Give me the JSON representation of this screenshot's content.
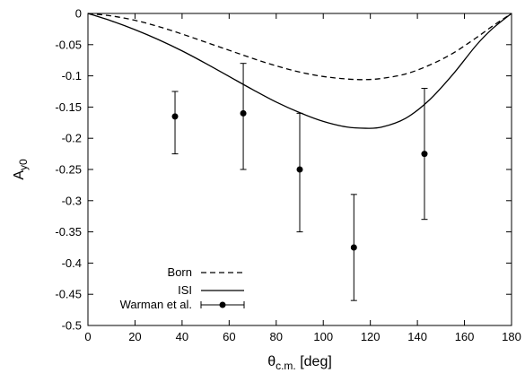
{
  "chart_data": {
    "type": "line",
    "xlabel": "θ",
    "xlabel_sub": "c.m.",
    "xlabel_unit": " [deg]",
    "ylabel": "A",
    "ylabel_sub": "y0",
    "xlim": [
      0,
      180
    ],
    "ylim": [
      -0.5,
      0
    ],
    "xticks": [
      0,
      20,
      40,
      60,
      80,
      100,
      120,
      140,
      160,
      180
    ],
    "xtick_labels": [
      "0",
      "20",
      "40",
      "60",
      "80",
      "100",
      "120",
      "140",
      "160",
      "180"
    ],
    "yticks": [
      0,
      -0.05,
      -0.1,
      -0.15,
      -0.2,
      -0.25,
      -0.3,
      -0.35,
      -0.4,
      -0.45,
      -0.5
    ],
    "ytick_labels": [
      "0",
      "-0.05",
      "-0.1",
      "-0.15",
      "-0.2",
      "-0.25",
      "-0.3",
      "-0.35",
      "-0.4",
      "-0.45",
      "-0.5"
    ],
    "grid": false,
    "legend_position": "bottom-left",
    "series": [
      {
        "name": "Born",
        "style": "dashed",
        "x": [
          0,
          10,
          20,
          30,
          40,
          50,
          60,
          70,
          80,
          90,
          100,
          110,
          118,
          125,
          135,
          145,
          155,
          165,
          172,
          180
        ],
        "y": [
          0,
          -0.004,
          -0.011,
          -0.021,
          -0.033,
          -0.046,
          -0.059,
          -0.072,
          -0.084,
          -0.094,
          -0.101,
          -0.105,
          -0.106,
          -0.104,
          -0.097,
          -0.083,
          -0.064,
          -0.039,
          -0.02,
          0
        ]
      },
      {
        "name": "ISI",
        "style": "solid",
        "x": [
          0,
          10,
          20,
          30,
          40,
          50,
          60,
          70,
          80,
          90,
          100,
          110,
          118,
          125,
          135,
          145,
          155,
          165,
          172,
          180
        ],
        "y": [
          0,
          -0.012,
          -0.026,
          -0.042,
          -0.06,
          -0.08,
          -0.101,
          -0.122,
          -0.142,
          -0.159,
          -0.173,
          -0.182,
          -0.184,
          -0.182,
          -0.168,
          -0.139,
          -0.098,
          -0.051,
          -0.024,
          0
        ]
      },
      {
        "name": "Warman et al.",
        "style": "points-errorbars",
        "x": [
          37,
          66,
          90,
          113,
          143
        ],
        "y": [
          -0.165,
          -0.16,
          -0.25,
          -0.375,
          -0.225
        ],
        "err_low": [
          -0.225,
          -0.25,
          -0.35,
          -0.46,
          -0.33
        ],
        "err_high": [
          -0.125,
          -0.08,
          -0.16,
          -0.29,
          -0.12
        ]
      }
    ]
  }
}
